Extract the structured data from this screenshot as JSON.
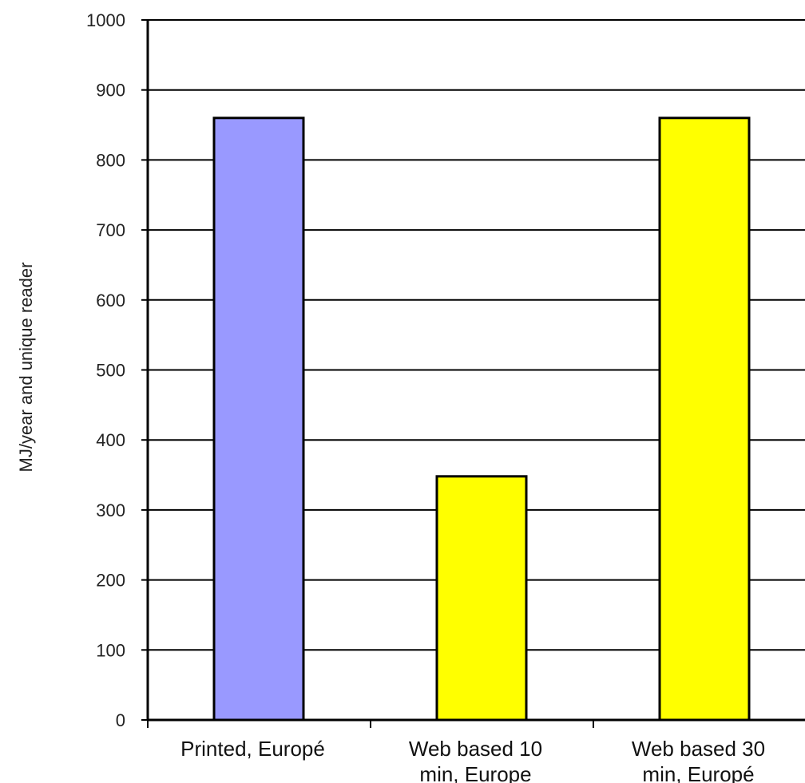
{
  "chart_data": {
    "type": "bar",
    "title": "",
    "xlabel": "",
    "ylabel": "MJ/year and unique reader",
    "ylim": [
      0,
      1000
    ],
    "yticks": [
      0,
      100,
      200,
      300,
      400,
      500,
      600,
      700,
      800,
      900,
      1000
    ],
    "grid": true,
    "legend": "none",
    "categories": [
      [
        "Printed, Europé"
      ],
      [
        "Web based 10",
        "min, Europe"
      ],
      [
        "Web based 30",
        "min, Europé"
      ]
    ],
    "values": [
      860,
      348,
      860
    ],
    "colors": [
      "#9999ff",
      "#ffff00",
      "#ffff00"
    ]
  }
}
